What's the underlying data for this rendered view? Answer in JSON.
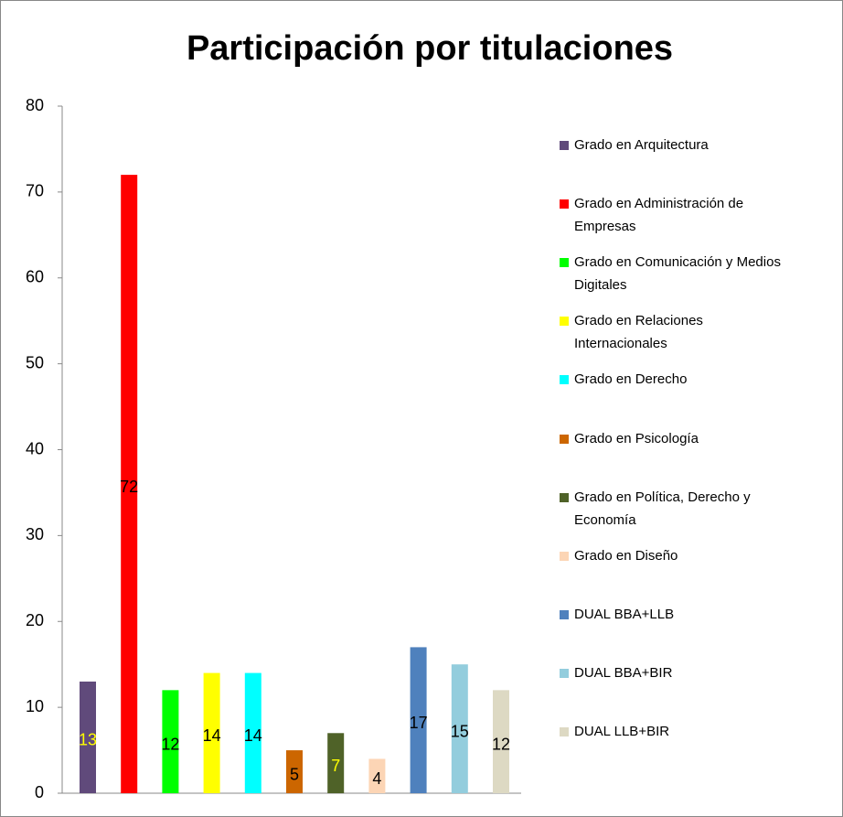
{
  "chart_data": {
    "type": "bar",
    "title": "Participación por titulaciones",
    "ylim": [
      0,
      80
    ],
    "yticks": [
      0,
      10,
      20,
      30,
      40,
      50,
      60,
      70,
      80
    ],
    "series": [
      {
        "name": "Grado en Arquitectura",
        "color": "#604a7b",
        "label_color": "#ffff00",
        "values": [
          13
        ]
      },
      {
        "name": "Grado en Administración de Empresas",
        "color": "#ff0000",
        "label_color": "#000000",
        "values": [
          72
        ]
      },
      {
        "name": "Grado en Comunicación y Medios Digitales",
        "color": "#00ff00",
        "label_color": "#000000",
        "values": [
          12
        ]
      },
      {
        "name": "Grado en Relaciones Internacionales",
        "color": "#ffff00",
        "label_color": "#000000",
        "values": [
          14
        ]
      },
      {
        "name": "Grado en Derecho",
        "color": "#00ffff",
        "label_color": "#000000",
        "values": [
          14
        ]
      },
      {
        "name": "Grado en Psicología",
        "color": "#cc6600",
        "label_color": "#000000",
        "values": [
          5
        ]
      },
      {
        "name": "Grado en Política, Derecho y Economía",
        "color": "#4f6228",
        "label_color": "#ffff00",
        "values": [
          7
        ]
      },
      {
        "name": "Grado en Diseño",
        "color": "#fcd5b5",
        "label_color": "#000000",
        "values": [
          4
        ]
      },
      {
        "name": "DUAL BBA+LLB",
        "color": "#4f81bd",
        "label_color": "#000000",
        "values": [
          17
        ]
      },
      {
        "name": "DUAL BBA+BIR",
        "color": "#93cddd",
        "label_color": "#000000",
        "values": [
          15
        ]
      },
      {
        "name": "DUAL LLB+BIR",
        "color": "#ddd9c3",
        "label_color": "#000000",
        "values": [
          12
        ]
      }
    ]
  }
}
